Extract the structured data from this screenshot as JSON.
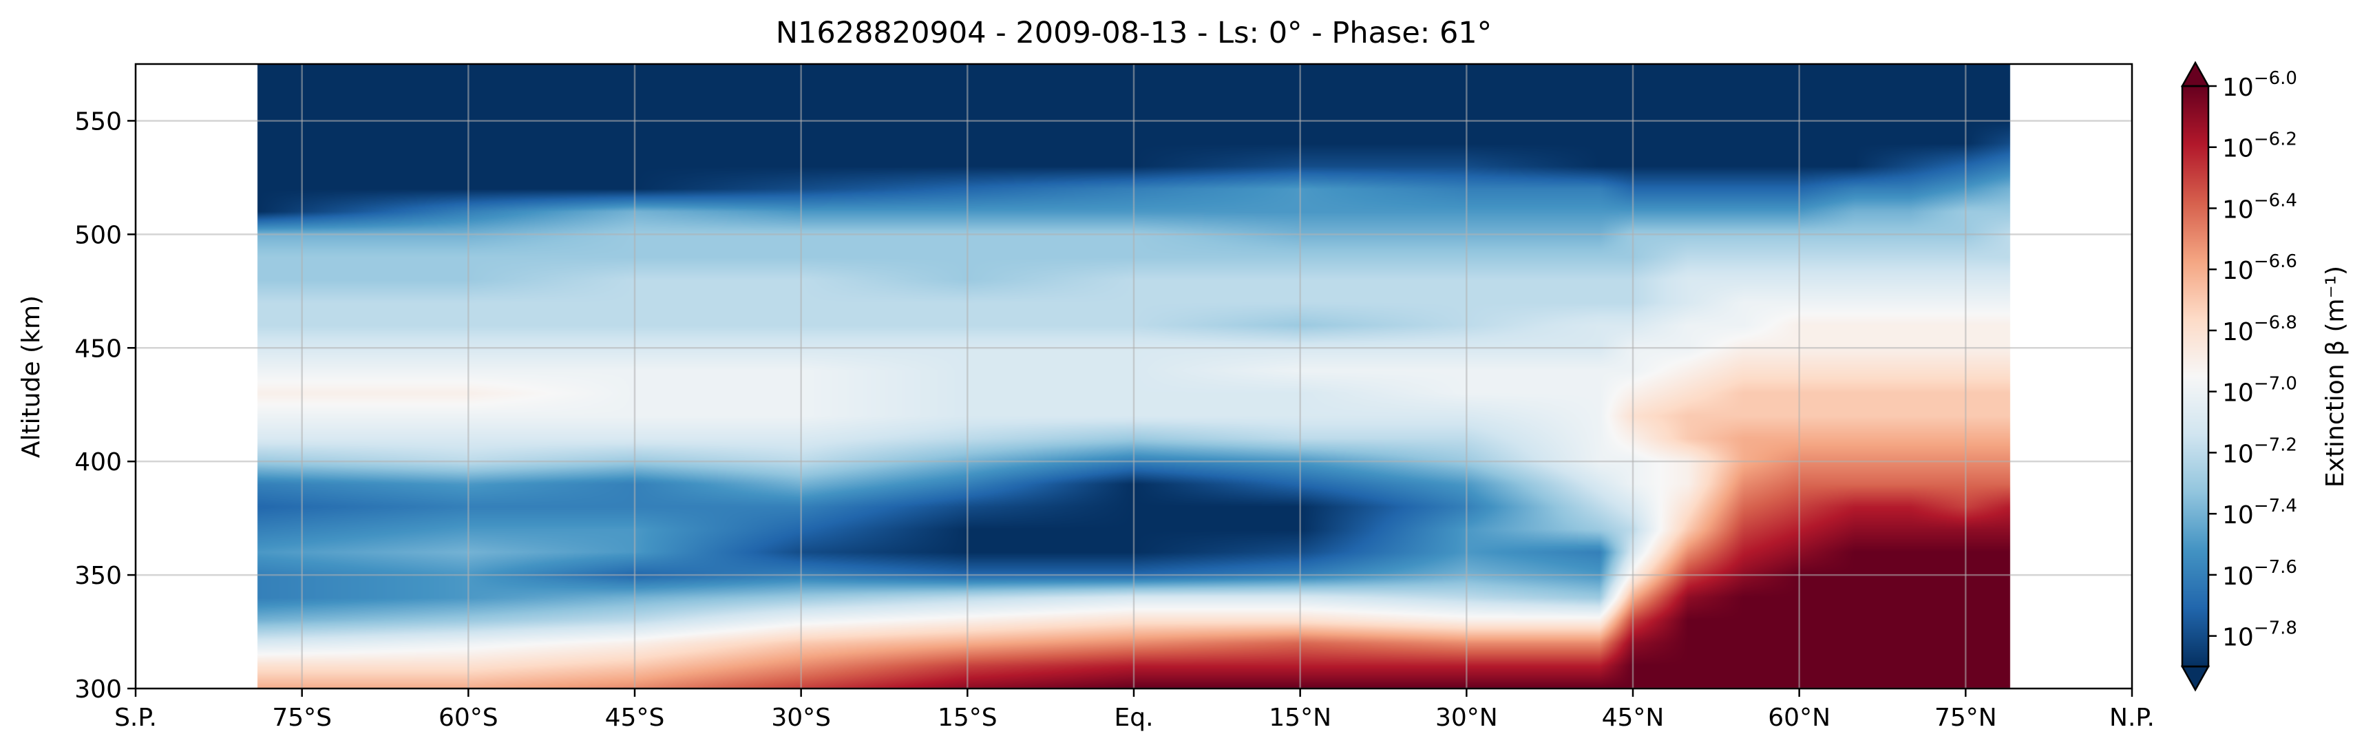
{
  "chart_data": {
    "type": "heatmap",
    "title": "N1628820904 - 2009-08-13 - Ls: 0° - Phase: 61°",
    "xlabel": "",
    "ylabel": "Altitude (km)",
    "x_ticks": [
      "S.P.",
      "75°S",
      "60°S",
      "45°S",
      "30°S",
      "15°S",
      "Eq.",
      "15°N",
      "30°N",
      "45°N",
      "60°N",
      "75°N",
      "N.P."
    ],
    "x_tick_values": [
      -90,
      -75,
      -60,
      -45,
      -30,
      -15,
      0,
      15,
      30,
      45,
      60,
      75,
      90
    ],
    "xlim": [
      -90,
      90
    ],
    "data_latitude_range": [
      -79,
      79
    ],
    "ylim": [
      300,
      575
    ],
    "y_ticks": [
      300,
      350,
      400,
      450,
      500,
      550
    ],
    "grid": true,
    "colormap": "RdBu_r",
    "colorbar": {
      "label": "Extinction β (m⁻¹)",
      "scale": "log",
      "range_exponent": [
        -7.9,
        -6.0
      ],
      "extend": "both",
      "tick_exponents": [
        -6.0,
        -6.2,
        -6.4,
        -6.6,
        -6.8,
        -7.0,
        -7.2,
        -7.4,
        -7.6,
        -7.8
      ],
      "tick_labels": [
        "−6.0",
        "−6.2",
        "−6.4",
        "−6.6",
        "−6.8",
        "−7.0",
        "−7.2",
        "−7.4",
        "−7.6",
        "−7.8"
      ]
    },
    "field_description": {
      "lat_knots": [
        -79,
        -60,
        -45,
        -30,
        -15,
        0,
        15,
        30,
        42,
        45,
        50,
        55,
        60,
        65,
        70,
        75,
        79
      ],
      "z_knots": [
        300,
        310,
        320,
        330,
        340,
        350,
        360,
        370,
        380,
        390,
        400,
        410,
        420,
        430,
        440,
        450,
        460,
        470,
        480,
        490,
        500,
        510,
        520,
        530,
        540,
        550,
        575
      ],
      "log10_beta_rows": [
        [
          -6.6,
          -6.6,
          -6.5,
          -6.3,
          -6.1,
          -6.0,
          -6.0,
          -6.0,
          -6.0,
          -6.0,
          -6.0,
          -6.0,
          -6.0,
          -6.0,
          -6.0,
          -6.0,
          -6.0
        ],
        [
          -6.8,
          -6.8,
          -6.7,
          -6.5,
          -6.3,
          -6.2,
          -6.2,
          -6.2,
          -6.2,
          -6.0,
          -6.0,
          -6.0,
          -6.0,
          -6.0,
          -6.0,
          -6.0,
          -6.0
        ],
        [
          -7.1,
          -7.0,
          -6.9,
          -6.7,
          -6.6,
          -6.5,
          -6.4,
          -6.5,
          -6.5,
          -6.1,
          -6.0,
          -6.0,
          -6.0,
          -6.0,
          -6.0,
          -6.0,
          -6.0
        ],
        [
          -7.4,
          -7.3,
          -7.2,
          -7.0,
          -6.9,
          -6.8,
          -6.8,
          -6.9,
          -6.9,
          -6.3,
          -6.0,
          -6.0,
          -6.0,
          -6.0,
          -6.0,
          -6.0,
          -6.0
        ],
        [
          -7.6,
          -7.5,
          -7.4,
          -7.3,
          -7.2,
          -7.1,
          -7.1,
          -7.2,
          -7.3,
          -6.6,
          -6.1,
          -6.0,
          -6.0,
          -6.0,
          -6.0,
          -6.0,
          -6.0
        ],
        [
          -7.6,
          -7.5,
          -7.7,
          -7.6,
          -7.7,
          -7.7,
          -7.6,
          -7.4,
          -7.5,
          -6.9,
          -6.3,
          -6.1,
          -6.0,
          -6.0,
          -6.0,
          -6.0,
          -6.0
        ],
        [
          -7.5,
          -7.4,
          -7.5,
          -7.8,
          -7.9,
          -7.9,
          -7.8,
          -7.5,
          -7.6,
          -7.1,
          -6.5,
          -6.2,
          -6.1,
          -6.0,
          -6.0,
          -6.0,
          -6.0
        ],
        [
          -7.6,
          -7.5,
          -7.5,
          -7.7,
          -7.9,
          -7.9,
          -7.9,
          -7.5,
          -7.3,
          -7.2,
          -6.7,
          -6.3,
          -6.2,
          -6.1,
          -6.1,
          -6.1,
          -6.1
        ],
        [
          -7.7,
          -7.6,
          -7.6,
          -7.6,
          -7.8,
          -7.9,
          -7.9,
          -7.6,
          -7.2,
          -7.1,
          -6.8,
          -6.4,
          -6.3,
          -6.2,
          -6.2,
          -6.3,
          -6.2
        ],
        [
          -7.6,
          -7.5,
          -7.6,
          -7.4,
          -7.6,
          -7.9,
          -7.7,
          -7.5,
          -7.1,
          -7.0,
          -6.9,
          -6.5,
          -6.4,
          -6.4,
          -6.4,
          -6.4,
          -6.4
        ],
        [
          -7.3,
          -7.2,
          -7.3,
          -7.2,
          -7.4,
          -7.6,
          -7.5,
          -7.3,
          -7.0,
          -7.0,
          -6.9,
          -6.6,
          -6.5,
          -6.5,
          -6.5,
          -6.5,
          -6.5
        ],
        [
          -7.1,
          -7.1,
          -7.1,
          -7.1,
          -7.2,
          -7.3,
          -7.2,
          -7.2,
          -7.0,
          -6.9,
          -6.7,
          -6.6,
          -6.6,
          -6.6,
          -6.6,
          -6.6,
          -6.6
        ],
        [
          -7.0,
          -7.0,
          -7.0,
          -7.0,
          -7.1,
          -7.1,
          -7.1,
          -7.1,
          -7.0,
          -6.8,
          -6.7,
          -6.7,
          -6.7,
          -6.7,
          -6.7,
          -6.7,
          -6.7
        ],
        [
          -6.9,
          -6.9,
          -7.0,
          -7.0,
          -7.1,
          -7.1,
          -7.1,
          -7.0,
          -7.0,
          -6.9,
          -6.8,
          -6.7,
          -6.7,
          -6.7,
          -6.7,
          -6.7,
          -6.7
        ],
        [
          -7.0,
          -7.0,
          -7.0,
          -7.0,
          -7.1,
          -7.1,
          -7.0,
          -7.0,
          -7.0,
          -7.0,
          -6.9,
          -6.8,
          -6.8,
          -6.8,
          -6.8,
          -6.8,
          -6.8
        ],
        [
          -7.1,
          -7.1,
          -7.1,
          -7.1,
          -7.1,
          -7.1,
          -7.1,
          -7.1,
          -7.1,
          -7.0,
          -7.0,
          -6.9,
          -6.9,
          -6.9,
          -6.9,
          -6.9,
          -6.9
        ],
        [
          -7.2,
          -7.2,
          -7.2,
          -7.2,
          -7.2,
          -7.2,
          -7.3,
          -7.2,
          -7.1,
          -7.1,
          -7.0,
          -7.0,
          -6.9,
          -6.9,
          -6.9,
          -6.9,
          -6.9
        ],
        [
          -7.2,
          -7.2,
          -7.2,
          -7.2,
          -7.2,
          -7.2,
          -7.2,
          -7.2,
          -7.2,
          -7.2,
          -7.1,
          -7.0,
          -7.0,
          -7.0,
          -7.0,
          -7.0,
          -7.0
        ],
        [
          -7.3,
          -7.3,
          -7.2,
          -7.2,
          -7.3,
          -7.2,
          -7.2,
          -7.2,
          -7.2,
          -7.2,
          -7.1,
          -7.1,
          -7.1,
          -7.1,
          -7.1,
          -7.1,
          -7.1
        ],
        [
          -7.3,
          -7.3,
          -7.3,
          -7.3,
          -7.3,
          -7.3,
          -7.3,
          -7.3,
          -7.3,
          -7.3,
          -7.2,
          -7.2,
          -7.2,
          -7.2,
          -7.2,
          -7.2,
          -7.2
        ],
        [
          -7.4,
          -7.4,
          -7.3,
          -7.3,
          -7.3,
          -7.3,
          -7.4,
          -7.4,
          -7.4,
          -7.3,
          -7.3,
          -7.3,
          -7.3,
          -7.3,
          -7.3,
          -7.3,
          -7.2
        ],
        [
          -7.9,
          -7.6,
          -7.4,
          -7.5,
          -7.5,
          -7.5,
          -7.5,
          -7.5,
          -7.5,
          -7.5,
          -7.5,
          -7.5,
          -7.5,
          -7.4,
          -7.4,
          -7.3,
          -7.3
        ],
        [
          -7.9,
          -7.9,
          -7.9,
          -7.8,
          -7.7,
          -7.6,
          -7.5,
          -7.6,
          -7.6,
          -7.7,
          -7.7,
          -7.7,
          -7.7,
          -7.6,
          -7.6,
          -7.5,
          -7.4
        ],
        [
          -7.9,
          -7.9,
          -7.9,
          -7.9,
          -7.9,
          -7.9,
          -7.8,
          -7.8,
          -7.9,
          -7.9,
          -7.9,
          -7.9,
          -7.9,
          -7.9,
          -7.8,
          -7.7,
          -7.6
        ],
        [
          -7.9,
          -7.9,
          -7.9,
          -7.9,
          -7.9,
          -7.9,
          -7.9,
          -7.9,
          -7.9,
          -7.9,
          -7.9,
          -7.9,
          -7.9,
          -7.9,
          -7.9,
          -7.9,
          -7.8
        ],
        [
          -7.9,
          -7.9,
          -7.9,
          -7.9,
          -7.9,
          -7.9,
          -7.9,
          -7.9,
          -7.9,
          -7.9,
          -7.9,
          -7.9,
          -7.9,
          -7.9,
          -7.9,
          -7.9,
          -7.9
        ],
        [
          -7.9,
          -7.9,
          -7.9,
          -7.9,
          -7.9,
          -7.9,
          -7.9,
          -7.9,
          -7.9,
          -7.9,
          -7.9,
          -7.9,
          -7.9,
          -7.9,
          -7.9,
          -7.9,
          -7.9
        ]
      ]
    }
  }
}
